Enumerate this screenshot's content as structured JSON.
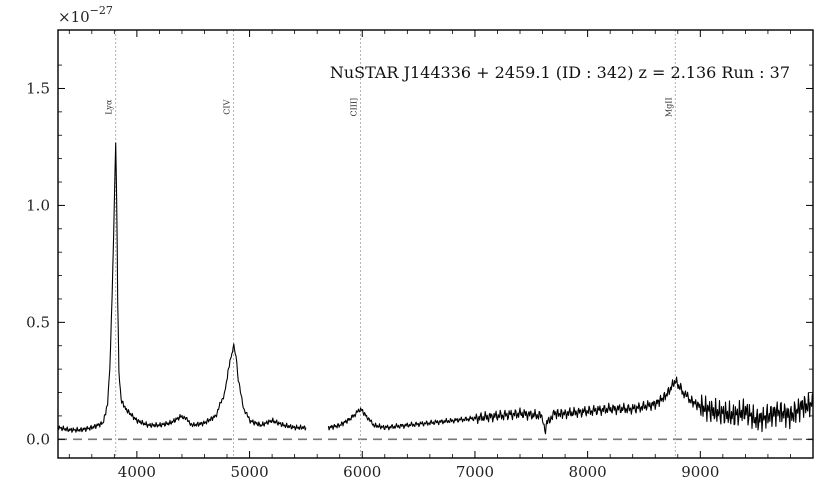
{
  "chart_data": {
    "type": "line",
    "title": "NuSTAR J144336 + 2459.1 (ID : 342)   z = 2.136   Run : 37",
    "xlabel": "",
    "ylabel": "",
    "y_multiplier": {
      "base": "×10",
      "exponent": "−27"
    },
    "xlim": [
      3300,
      10000
    ],
    "ylim": [
      -0.08,
      1.75
    ],
    "x_ticks": [
      4000,
      5000,
      6000,
      7000,
      8000,
      9000
    ],
    "x_tick_labels": [
      "4000",
      "5000",
      "6000",
      "7000",
      "8000",
      "9000"
    ],
    "y_ticks": [
      0.0,
      0.5,
      1.0,
      1.5
    ],
    "y_tick_labels": [
      "0.0",
      "0.5",
      "1.0",
      "1.5"
    ],
    "zero_line": {
      "y": 0.0,
      "style": "dashed",
      "color": "#777777"
    },
    "emission_lines": [
      {
        "label": "Lyα",
        "x": 3812
      },
      {
        "label": "CIV",
        "x": 4858
      },
      {
        "label": "CIII]",
        "x": 5985
      },
      {
        "label": "MgII",
        "x": 8778
      }
    ],
    "series": [
      {
        "color": "#000000",
        "segments": [
          {
            "x": [
              3300,
              3400,
              3500,
              3600,
              3700,
              3740,
              3760,
              3780,
              3800,
              3812,
              3820,
              3830,
              3840,
              3860,
              3900,
              4000,
              4100,
              4200,
              4300,
              4400,
              4450,
              4500,
              4600,
              4700,
              4780,
              4820,
              4860,
              4880,
              4900,
              4950,
              5000,
              5100,
              5200,
              5300,
              5400,
              5500
            ],
            "y": [
              0.05,
              0.04,
              0.04,
              0.05,
              0.07,
              0.15,
              0.3,
              0.6,
              1.0,
              1.27,
              1.05,
              0.6,
              0.3,
              0.17,
              0.13,
              0.08,
              0.06,
              0.06,
              0.07,
              0.1,
              0.08,
              0.06,
              0.07,
              0.1,
              0.2,
              0.32,
              0.4,
              0.35,
              0.25,
              0.13,
              0.08,
              0.06,
              0.08,
              0.06,
              0.05,
              0.05
            ]
          },
          {
            "x": [
              5700,
              5800,
              5900,
              5985,
              6050,
              6100,
              6200,
              6400,
              6600,
              6800,
              7000,
              7200,
              7400,
              7600,
              7620,
              7650,
              7700,
              7800,
              8000,
              8200,
              8400,
              8600,
              8700,
              8778,
              8850,
              8900,
              9000,
              9100,
              9200,
              9300,
              9400,
              9500,
              9600,
              9700,
              9800,
              9900,
              10000
            ],
            "y": [
              0.05,
              0.06,
              0.09,
              0.13,
              0.09,
              0.06,
              0.05,
              0.06,
              0.07,
              0.08,
              0.09,
              0.1,
              0.11,
              0.1,
              0.04,
              0.08,
              0.11,
              0.11,
              0.12,
              0.13,
              0.13,
              0.15,
              0.19,
              0.25,
              0.2,
              0.17,
              0.14,
              0.12,
              0.11,
              0.1,
              0.12,
              0.08,
              0.1,
              0.12,
              0.1,
              0.14,
              0.15
            ]
          }
        ]
      }
    ]
  }
}
